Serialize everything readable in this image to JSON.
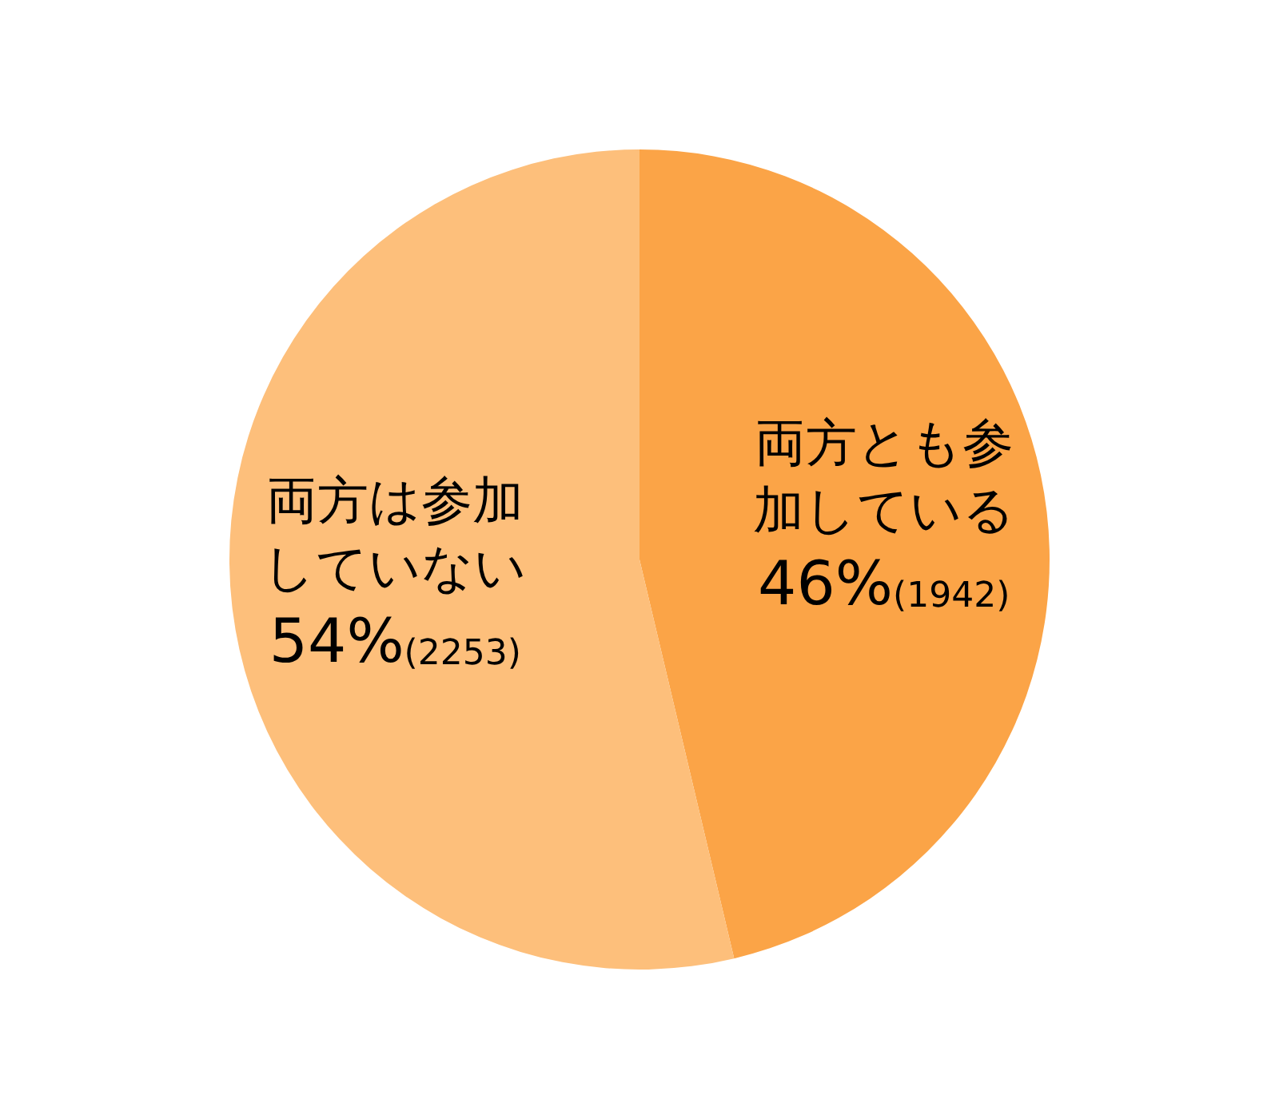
{
  "chart_data": {
    "type": "pie",
    "categories": [
      "両方とも参加している",
      "両方は参加していない"
    ],
    "values": [
      1942,
      2253
    ],
    "value_labels": [
      "46%(1942)",
      "54%(2253)"
    ],
    "colors": [
      "#fba447",
      "#fdbf7b"
    ],
    "legend": false
  }
}
